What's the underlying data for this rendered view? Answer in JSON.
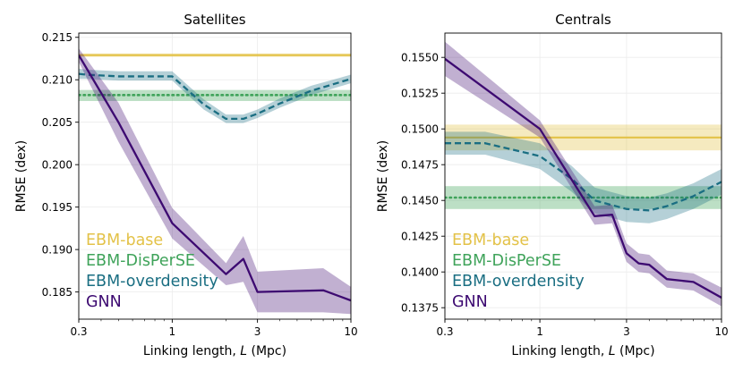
{
  "colors": {
    "ebm_base": "#E3C248",
    "ebm_disperse": "#3FA35A",
    "ebm_overdensity": "#1A6E82",
    "gnn": "#3D0A71"
  },
  "chart_data": [
    {
      "type": "line",
      "title": "Satellites",
      "xlabel_prefix": "Linking length, ",
      "xlabel_var": "L",
      "xlabel_suffix": " (Mpc)",
      "ylabel": "RMSE (dex)",
      "xscale": "log",
      "xlim": [
        0.3,
        10
      ],
      "ylim": [
        0.1818,
        0.2155
      ],
      "xticks": [
        0.3,
        1,
        3,
        10
      ],
      "xtick_labels": [
        "0.3",
        "1",
        "3",
        "10"
      ],
      "yticks": [
        0.185,
        0.19,
        0.195,
        0.2,
        0.205,
        0.21,
        0.215
      ],
      "ytick_labels": [
        "0.185",
        "0.190",
        "0.195",
        "0.200",
        "0.205",
        "0.210",
        "0.215"
      ],
      "legend": {
        "placement": "bottom-left",
        "entries": [
          "EBM-base",
          "EBM-DisPerSE",
          "EBM-overdensity",
          "GNN"
        ]
      },
      "series": [
        {
          "name": "EBM-base",
          "style": "solid-hline",
          "y": 0.2129,
          "band": [
            0.2127,
            0.2131
          ]
        },
        {
          "name": "EBM-DisPerSE",
          "style": "dotted-hline",
          "y": 0.2082,
          "band": [
            0.2075,
            0.2088
          ]
        },
        {
          "name": "EBM-overdensity",
          "style": "dashed",
          "x": [
            0.3,
            0.33,
            0.5,
            1.0,
            1.5,
            2.0,
            2.5,
            3.0,
            4.0,
            6.0,
            10.0
          ],
          "y": [
            0.2107,
            0.2106,
            0.2104,
            0.2104,
            0.2071,
            0.2054,
            0.2054,
            0.206,
            0.2072,
            0.2087,
            0.2101
          ],
          "lower": [
            0.2101,
            0.2101,
            0.2099,
            0.2099,
            0.2065,
            0.2049,
            0.2049,
            0.2055,
            0.2067,
            0.2082,
            0.2096
          ],
          "upper": [
            0.2113,
            0.2112,
            0.211,
            0.211,
            0.2077,
            0.2059,
            0.2059,
            0.2065,
            0.2078,
            0.2093,
            0.2106
          ]
        },
        {
          "name": "GNN",
          "style": "solid",
          "x": [
            0.3,
            0.5,
            1.0,
            2.0,
            2.5,
            3.0,
            7.0,
            10.0
          ],
          "y": [
            0.2129,
            0.205,
            0.1931,
            0.1871,
            0.1889,
            0.185,
            0.1852,
            0.184
          ],
          "lower": [
            0.2121,
            0.2027,
            0.1913,
            0.1858,
            0.1862,
            0.1826,
            0.1826,
            0.1824
          ],
          "upper": [
            0.2137,
            0.2073,
            0.1949,
            0.1884,
            0.1916,
            0.1874,
            0.1878,
            0.1856
          ]
        }
      ]
    },
    {
      "type": "line",
      "title": "Centrals",
      "xlabel_prefix": "Linking length, ",
      "xlabel_var": "L",
      "xlabel_suffix": " (Mpc)",
      "ylabel": "RMSE (dex)",
      "xscale": "log",
      "xlim": [
        0.3,
        10
      ],
      "ylim": [
        0.1367,
        0.1567
      ],
      "xticks": [
        0.3,
        1,
        3,
        10
      ],
      "xtick_labels": [
        "0.3",
        "1",
        "3",
        "10"
      ],
      "yticks": [
        0.1375,
        0.14,
        0.1425,
        0.145,
        0.1475,
        0.15,
        0.1525,
        0.155
      ],
      "ytick_labels": [
        "0.1375",
        "0.1400",
        "0.1425",
        "0.1450",
        "0.1475",
        "0.1500",
        "0.1525",
        "0.1550"
      ],
      "legend": {
        "placement": "bottom-left",
        "entries": [
          "EBM-base",
          "EBM-DisPerSE",
          "EBM-overdensity",
          "GNN"
        ]
      },
      "series": [
        {
          "name": "EBM-base",
          "style": "solid-hline",
          "y": 0.1494,
          "band": [
            0.1485,
            0.1503
          ]
        },
        {
          "name": "EBM-DisPerSE",
          "style": "dotted-hline",
          "y": 0.1452,
          "band": [
            0.1444,
            0.146
          ]
        },
        {
          "name": "EBM-overdensity",
          "style": "dashed",
          "x": [
            0.3,
            0.5,
            1.0,
            1.5,
            2.0,
            3.0,
            4.0,
            5.0,
            7.0,
            10.0
          ],
          "y": [
            0.149,
            0.149,
            0.1481,
            0.1465,
            0.145,
            0.1444,
            0.1443,
            0.1446,
            0.1453,
            0.1463
          ],
          "lower": [
            0.1482,
            0.1482,
            0.1472,
            0.1456,
            0.1441,
            0.1435,
            0.1434,
            0.1437,
            0.1444,
            0.1454
          ],
          "upper": [
            0.1498,
            0.1498,
            0.149,
            0.1474,
            0.1459,
            0.1453,
            0.1452,
            0.1455,
            0.1462,
            0.1472
          ]
        },
        {
          "name": "GNN",
          "style": "solid",
          "x": [
            0.3,
            1.0,
            2.0,
            2.5,
            3.0,
            3.5,
            4.0,
            5.0,
            7.0,
            10.0
          ],
          "y": [
            0.1549,
            0.15,
            0.1439,
            0.144,
            0.1413,
            0.1406,
            0.1405,
            0.1395,
            0.1393,
            0.1382
          ],
          "lower": [
            0.1537,
            0.1494,
            0.1433,
            0.1434,
            0.1407,
            0.14,
            0.1399,
            0.1389,
            0.1387,
            0.1376
          ],
          "upper": [
            0.1561,
            0.1506,
            0.1446,
            0.1447,
            0.142,
            0.1413,
            0.1412,
            0.1401,
            0.1399,
            0.1389
          ]
        }
      ]
    }
  ]
}
